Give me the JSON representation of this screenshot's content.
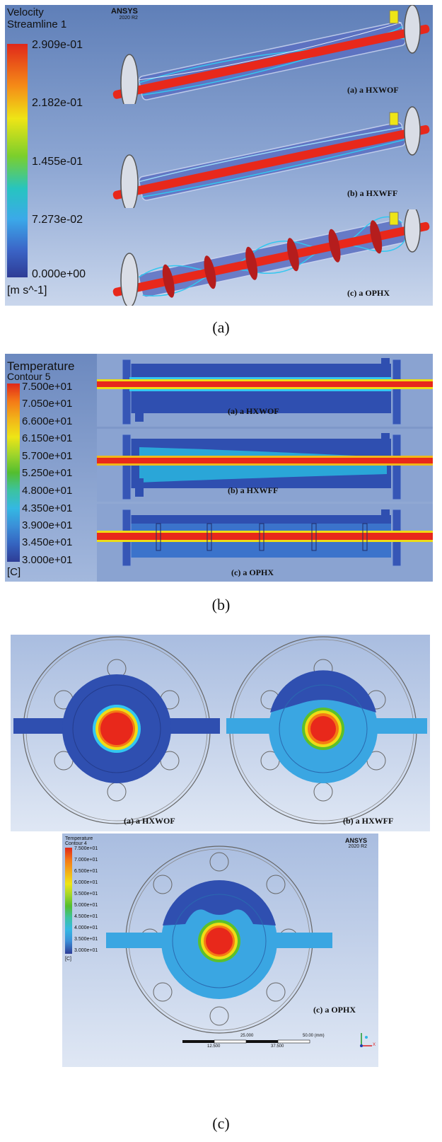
{
  "panel_a": {
    "legend_title_1": "Velocity",
    "legend_title_2": "Streamline 1",
    "legend_values": [
      "2.909e-01",
      "2.182e-01",
      "1.455e-01",
      "7.273e-02",
      "0.000e+00"
    ],
    "legend_unit": "[m s^-1]",
    "logo": "ANSYS",
    "logo_version": "2020 R2",
    "cases": [
      "(a) a HXWOF",
      "(b) a HXWFF",
      "(c) a OPHX"
    ]
  },
  "panel_b": {
    "legend_title_1": "Temperature",
    "legend_title_2": "Contour 5",
    "legend_values": [
      "7.500e+01",
      "7.050e+01",
      "6.600e+01",
      "6.150e+01",
      "5.700e+01",
      "5.250e+01",
      "4.800e+01",
      "4.350e+01",
      "3.900e+01",
      "3.450e+01",
      "3.000e+01"
    ],
    "legend_unit": "[C]",
    "cases": [
      "(a) a HXWOF",
      "(b) a HXWFF",
      "(c) a OPHX"
    ]
  },
  "panel_c": {
    "cases": [
      "(a) a HXWOF",
      "(b) a HXWFF",
      "(c) a OPHX"
    ],
    "legend_title_1": "Temperature",
    "legend_title_2": "Contour 4",
    "legend_values": [
      "7.500e+01",
      "7.000e+01",
      "6.500e+01",
      "6.000e+01",
      "5.500e+01",
      "5.000e+01",
      "4.500e+01",
      "4.000e+01",
      "3.500e+01",
      "3.000e+01"
    ],
    "legend_unit": "[C]",
    "logo": "ANSYS",
    "logo_version": "2020 R2",
    "scale_top": "25.000",
    "scale_right": "50.00 (mm)",
    "scale_bottom_1": "12.500",
    "scale_bottom_2": "37.500",
    "axis_x": "X"
  },
  "captions": [
    "(a)",
    "(b)",
    "(c)"
  ],
  "colors": {
    "red": "#e8281b",
    "orange": "#f57a14",
    "yellow": "#eedc16",
    "green": "#5cc02a",
    "cyan": "#2fb7e6",
    "blue": "#2a4fb3",
    "navy": "#2b3c9a"
  }
}
